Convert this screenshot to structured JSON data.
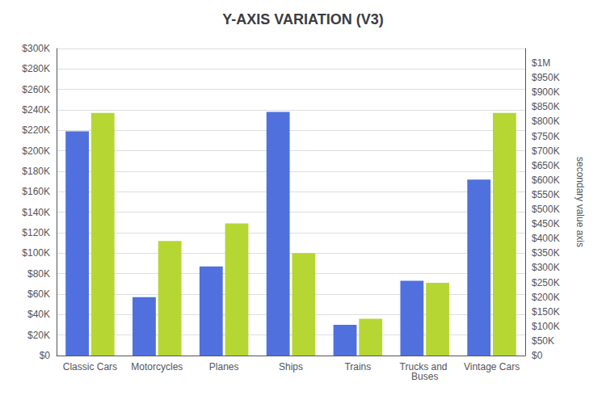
{
  "chart_data": {
    "type": "bar",
    "title": "Y-AXIS VARIATION (V3)",
    "categories": [
      "Classic Cars",
      "Motorcycles",
      "Planes",
      "Ships",
      "Trains",
      "Trucks and Buses",
      "Vintage Cars"
    ],
    "series": [
      {
        "values": [
          219000,
          57000,
          87000,
          238000,
          30000,
          73000,
          172000
        ]
      },
      {
        "values": [
          237000,
          112000,
          129000,
          100000,
          36000,
          71000,
          237000
        ]
      }
    ],
    "ylim": [
      0,
      300000
    ],
    "yticks": [
      {
        "value": 0,
        "label": "$0"
      },
      {
        "value": 20000,
        "label": "$20K"
      },
      {
        "value": 40000,
        "label": "$40K"
      },
      {
        "value": 60000,
        "label": "$60K"
      },
      {
        "value": 80000,
        "label": "$80K"
      },
      {
        "value": 100000,
        "label": "$100K"
      },
      {
        "value": 120000,
        "label": "$120K"
      },
      {
        "value": 140000,
        "label": "$140K"
      },
      {
        "value": 160000,
        "label": "$160K"
      },
      {
        "value": 180000,
        "label": "$180K"
      },
      {
        "value": 200000,
        "label": "$200K"
      },
      {
        "value": 220000,
        "label": "$220K"
      },
      {
        "value": 240000,
        "label": "$240K"
      },
      {
        "value": 260000,
        "label": "$260K"
      },
      {
        "value": 280000,
        "label": "$280K"
      },
      {
        "value": 300000,
        "label": "$300K"
      }
    ],
    "y2label": "secondary value axis",
    "y2lim": [
      0,
      1050000
    ],
    "y2ticks": [
      {
        "value": 0,
        "label": "$0"
      },
      {
        "value": 50000,
        "label": "$50K"
      },
      {
        "value": 100000,
        "label": "$100K"
      },
      {
        "value": 150000,
        "label": "$150K"
      },
      {
        "value": 200000,
        "label": "$200K"
      },
      {
        "value": 250000,
        "label": "$250K"
      },
      {
        "value": 300000,
        "label": "$300K"
      },
      {
        "value": 350000,
        "label": "$350K"
      },
      {
        "value": 400000,
        "label": "$400K"
      },
      {
        "value": 450000,
        "label": "$450K"
      },
      {
        "value": 500000,
        "label": "$500K"
      },
      {
        "value": 550000,
        "label": "$550K"
      },
      {
        "value": 600000,
        "label": "$600K"
      },
      {
        "value": 650000,
        "label": "$650K"
      },
      {
        "value": 700000,
        "label": "$700K"
      },
      {
        "value": 750000,
        "label": "$750K"
      },
      {
        "value": 800000,
        "label": "$800K"
      },
      {
        "value": 850000,
        "label": "$850K"
      },
      {
        "value": 900000,
        "label": "$900K"
      },
      {
        "value": 950000,
        "label": "$950K"
      },
      {
        "value": 1000000,
        "label": "$1M"
      }
    ],
    "grid": true
  }
}
